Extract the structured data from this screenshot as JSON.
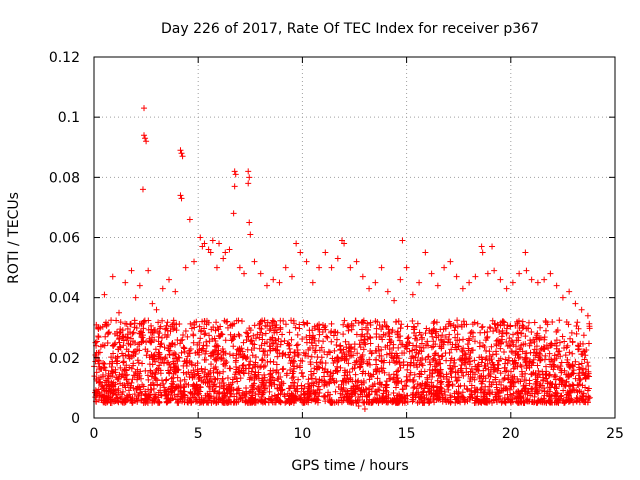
{
  "chart_data": {
    "type": "scatter",
    "title": "Day 226 of 2017, Rate Of TEC Index for receiver p367",
    "xlabel": "GPS time / hours",
    "ylabel": "ROTI / TECUs",
    "xlim": [
      0,
      25
    ],
    "ylim": [
      0,
      0.12
    ],
    "xticks": [
      0,
      5,
      10,
      15,
      20,
      25
    ],
    "yticks": [
      0,
      0.02,
      0.04,
      0.06,
      0.08,
      0.1,
      0.12
    ],
    "xtick_labels": [
      "0",
      "5",
      "10",
      "15",
      "20",
      "25"
    ],
    "ytick_labels": [
      "0",
      "0.02",
      "0.04",
      "0.06",
      "0.08",
      "0.1",
      "0.12"
    ],
    "grid": true,
    "marker": "+",
    "color": "#ff0000",
    "series": [
      {
        "name": "ROTI",
        "x": [
          2.4,
          2.4,
          2.45,
          2.5,
          2.35,
          4.15,
          4.2,
          4.25,
          4.15,
          4.2,
          4.6,
          6.75,
          6.8,
          6.75,
          6.7,
          7.4,
          7.45,
          7.4,
          7.45,
          7.5,
          14.8,
          18.6,
          18.65,
          19.1,
          20.7,
          20.75,
          21.0,
          11.9,
          9.7,
          5.1,
          5.3,
          5.5,
          5.7,
          6.0,
          6.3,
          0.3,
          0.5,
          0.9,
          1.2,
          1.5,
          1.8,
          2.0,
          2.2,
          2.6,
          2.8,
          3.0,
          3.3,
          3.6,
          3.9,
          4.4,
          4.8,
          5.2,
          5.6,
          5.9,
          6.2,
          6.5,
          7.0,
          7.2,
          7.7,
          8.0,
          8.3,
          8.6,
          8.9,
          9.2,
          9.5,
          9.9,
          10.2,
          10.5,
          10.8,
          11.1,
          11.4,
          11.7,
          12.0,
          12.3,
          12.6,
          12.9,
          13.2,
          13.5,
          13.8,
          14.1,
          14.4,
          14.7,
          15.0,
          15.3,
          15.6,
          15.9,
          16.2,
          16.5,
          16.8,
          17.1,
          17.4,
          17.7,
          18.0,
          18.3,
          18.9,
          19.2,
          19.5,
          19.8,
          20.1,
          20.4,
          21.3,
          21.6,
          21.9,
          22.2,
          22.5,
          22.8,
          23.1,
          23.4,
          23.7,
          13.0,
          13.3,
          12.7,
          9.0,
          3.5
        ],
        "y": [
          0.103,
          0.094,
          0.093,
          0.092,
          0.076,
          0.089,
          0.088,
          0.087,
          0.074,
          0.073,
          0.066,
          0.082,
          0.081,
          0.077,
          0.068,
          0.082,
          0.08,
          0.078,
          0.065,
          0.061,
          0.059,
          0.057,
          0.055,
          0.057,
          0.055,
          0.049,
          0.046,
          0.059,
          0.058,
          0.06,
          0.058,
          0.056,
          0.059,
          0.058,
          0.055,
          0.03,
          0.041,
          0.047,
          0.035,
          0.045,
          0.049,
          0.04,
          0.044,
          0.049,
          0.038,
          0.036,
          0.043,
          0.046,
          0.042,
          0.05,
          0.052,
          0.057,
          0.055,
          0.05,
          0.053,
          0.056,
          0.05,
          0.048,
          0.052,
          0.048,
          0.044,
          0.046,
          0.045,
          0.05,
          0.047,
          0.055,
          0.052,
          0.045,
          0.05,
          0.055,
          0.05,
          0.053,
          0.058,
          0.05,
          0.052,
          0.047,
          0.043,
          0.045,
          0.05,
          0.042,
          0.039,
          0.046,
          0.05,
          0.041,
          0.045,
          0.055,
          0.048,
          0.044,
          0.05,
          0.052,
          0.047,
          0.043,
          0.045,
          0.047,
          0.048,
          0.049,
          0.046,
          0.043,
          0.045,
          0.048,
          0.045,
          0.046,
          0.048,
          0.044,
          0.04,
          0.042,
          0.038,
          0.036,
          0.034,
          0.003,
          0.005,
          0.004,
          0.012,
          0.008
        ]
      }
    ],
    "background_noise_band": {
      "x_range": [
        0,
        23.8
      ],
      "typical_low": 0.005,
      "typical_high": 0.03,
      "point_count": 3200
    }
  }
}
